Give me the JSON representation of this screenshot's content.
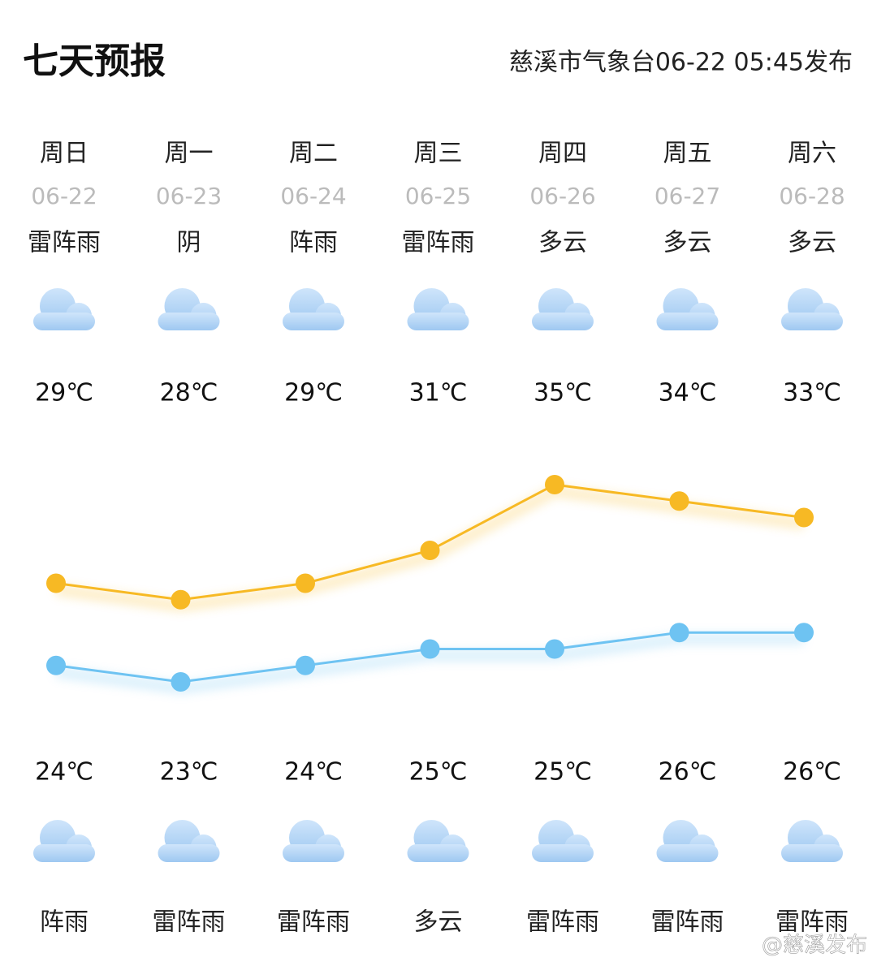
{
  "header": {
    "title": "七天预报",
    "publisher": "慈溪市气象台06-22 05:45发布"
  },
  "days": [
    {
      "weekday": "周日",
      "date": "06-22",
      "day_weather": "雷阵雨",
      "night_weather": "阵雨"
    },
    {
      "weekday": "周一",
      "date": "06-23",
      "day_weather": "阴",
      "night_weather": "雷阵雨"
    },
    {
      "weekday": "周二",
      "date": "06-24",
      "day_weather": "阵雨",
      "night_weather": "雷阵雨"
    },
    {
      "weekday": "周三",
      "date": "06-25",
      "day_weather": "雷阵雨",
      "night_weather": "多云"
    },
    {
      "weekday": "周四",
      "date": "06-26",
      "day_weather": "多云",
      "night_weather": "雷阵雨"
    },
    {
      "weekday": "周五",
      "date": "06-27",
      "day_weather": "多云",
      "night_weather": "雷阵雨"
    },
    {
      "weekday": "周六",
      "date": "06-28",
      "day_weather": "多云",
      "night_weather": "雷阵雨"
    }
  ],
  "chart_data": {
    "type": "line",
    "series": [
      {
        "color": "#f7b924",
        "values": [
          29,
          28,
          29,
          31,
          35,
          34,
          33
        ],
        "value_labels": [
          "29℃",
          "28℃",
          "29℃",
          "31℃",
          "35℃",
          "34℃",
          "33℃"
        ]
      },
      {
        "color": "#6ec3f2",
        "values": [
          24,
          23,
          24,
          25,
          25,
          26,
          26
        ],
        "value_labels": [
          "24℃",
          "23℃",
          "24℃",
          "25℃",
          "25℃",
          "26℃",
          "26℃"
        ]
      }
    ]
  },
  "watermark": "@慈溪发布"
}
